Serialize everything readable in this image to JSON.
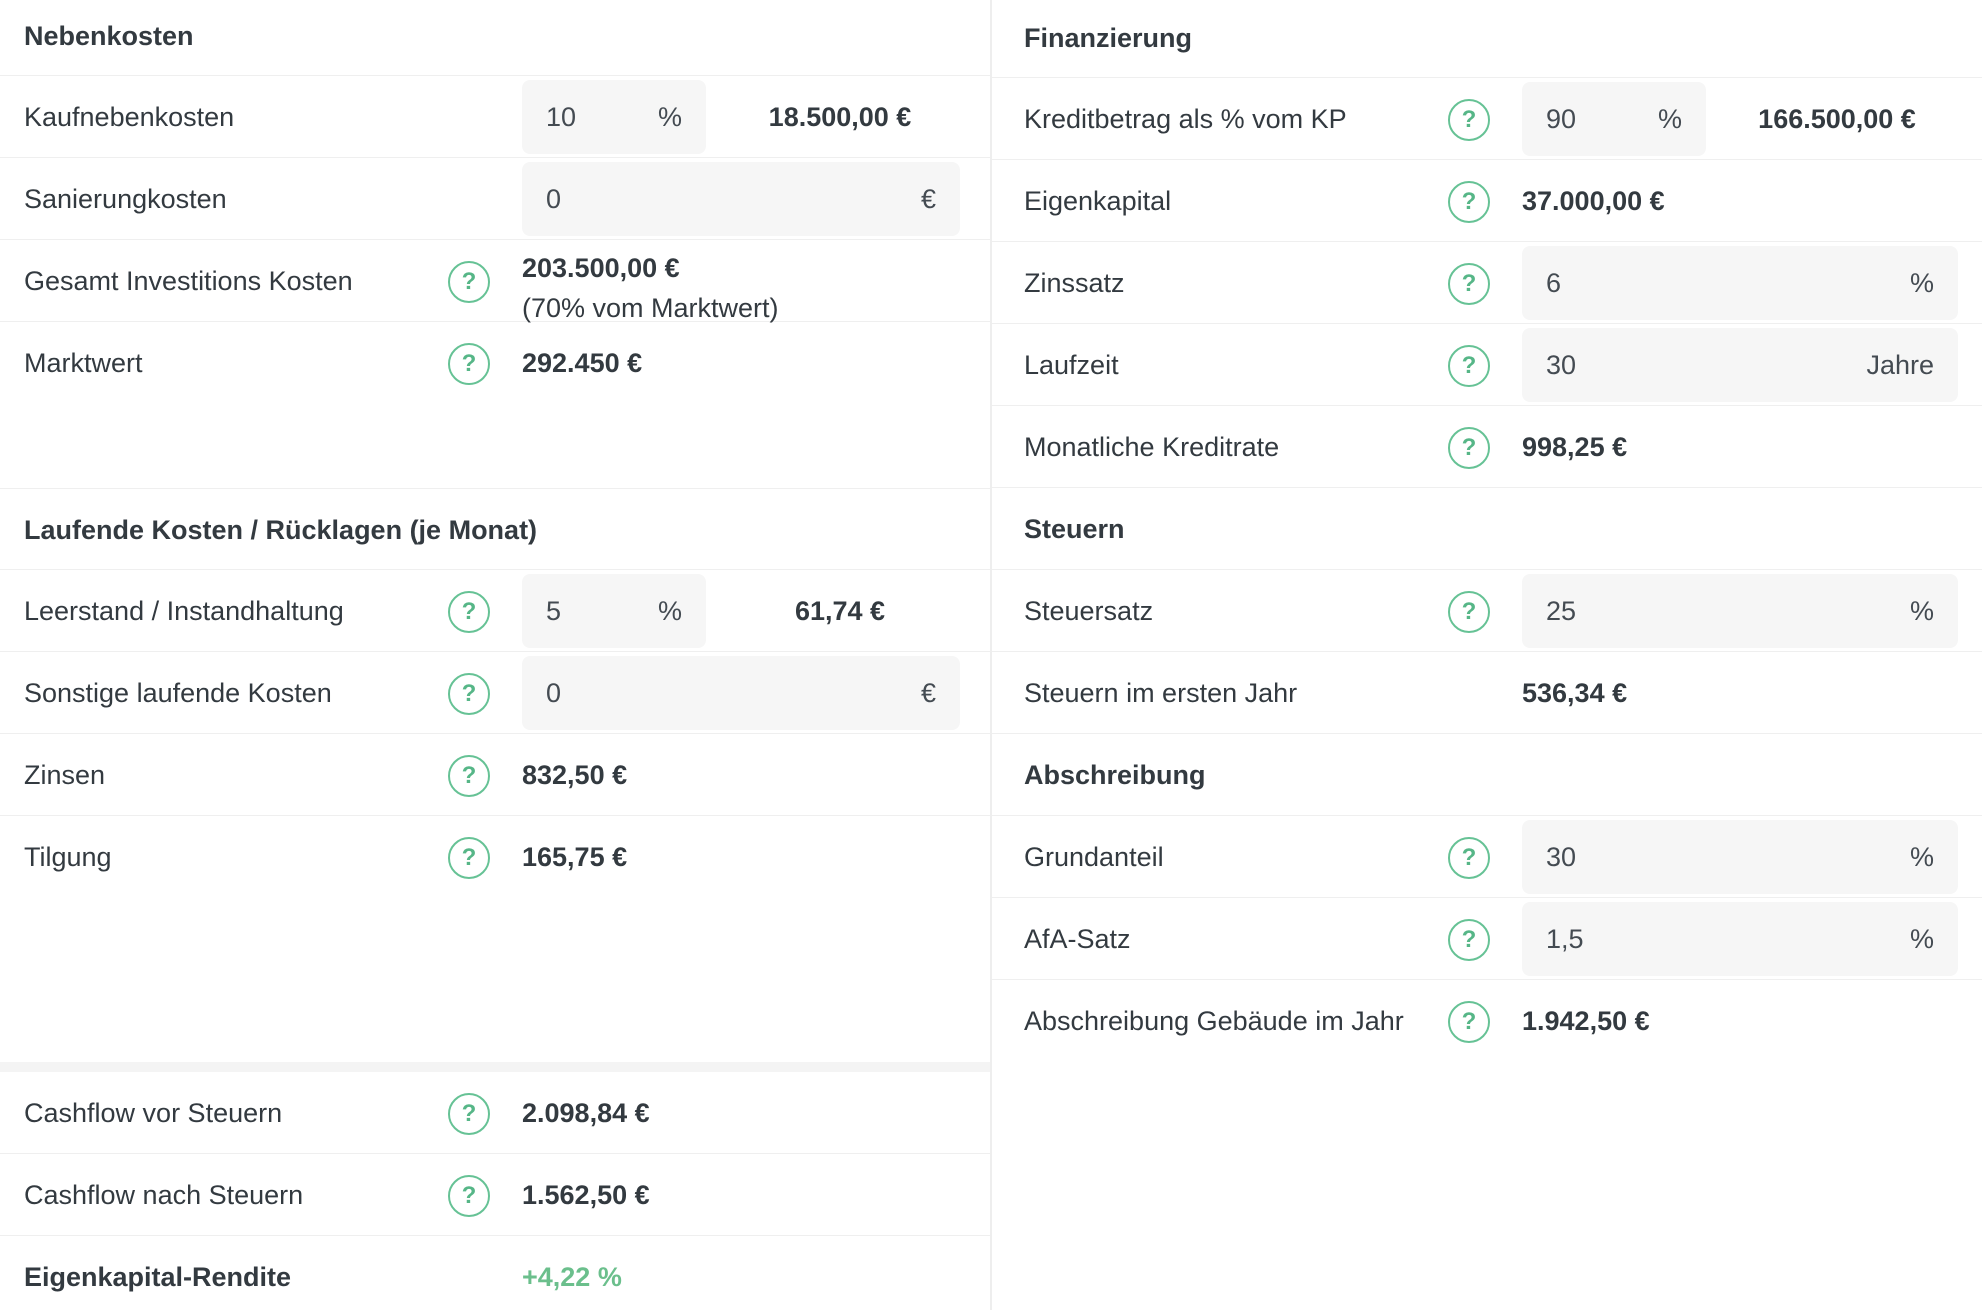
{
  "nebenkosten": {
    "title": "Nebenkosten",
    "kaufnebenkosten": {
      "label": "Kaufnebenkosten",
      "value": "10",
      "unit": "%",
      "amount": "18.500,00 €"
    },
    "sanierungkosten": {
      "label": "Sanierungkosten",
      "value": "0",
      "unit": "€"
    },
    "gesamt": {
      "label": "Gesamt Investitions Kosten",
      "amount": "203.500,00 €",
      "note": "(70% vom Marktwert)"
    },
    "marktwert": {
      "label": "Marktwert",
      "amount": "292.450 €"
    }
  },
  "laufende": {
    "title": "Laufende Kosten / Rücklagen (je Monat)",
    "leerstand": {
      "label": "Leerstand / Instandhaltung",
      "value": "5",
      "unit": "%",
      "amount": "61,74 €"
    },
    "sonstige": {
      "label": "Sonstige laufende Kosten",
      "value": "0",
      "unit": "€"
    },
    "zinsen": {
      "label": "Zinsen",
      "amount": "832,50 €"
    },
    "tilgung": {
      "label": "Tilgung",
      "amount": "165,75 €"
    }
  },
  "summary": {
    "cashflow_vor": {
      "label": "Cashflow vor Steuern",
      "amount": "2.098,84 €"
    },
    "cashflow_nach": {
      "label": "Cashflow nach Steuern",
      "amount": "1.562,50 €"
    },
    "rendite": {
      "label": "Eigenkapital-Rendite",
      "amount": "+4,22 %"
    }
  },
  "finanzierung": {
    "title": "Finanzierung",
    "kreditbetrag": {
      "label": "Kreditbetrag als % vom KP",
      "value": "90",
      "unit": "%",
      "amount": "166.500,00 €"
    },
    "eigenkapital": {
      "label": "Eigenkapital",
      "amount": "37.000,00 €"
    },
    "zinssatz": {
      "label": "Zinssatz",
      "value": "6",
      "unit": "%"
    },
    "laufzeit": {
      "label": "Laufzeit",
      "value": "30",
      "unit": "Jahre"
    },
    "kreditrate": {
      "label": "Monatliche Kreditrate",
      "amount": "998,25 €"
    }
  },
  "steuern": {
    "title": "Steuern",
    "steuersatz": {
      "label": "Steuersatz",
      "value": "25",
      "unit": "%"
    },
    "erstes_jahr": {
      "label": "Steuern im ersten Jahr",
      "amount": "536,34 €"
    }
  },
  "abschreibung": {
    "title": "Abschreibung",
    "grundanteil": {
      "label": "Grundanteil",
      "value": "30",
      "unit": "%"
    },
    "afa": {
      "label": "AfA-Satz",
      "value": "1,5",
      "unit": "%"
    },
    "gebaeude": {
      "label": "Abschreibung Gebäude im Jahr",
      "amount": "1.942,50 €"
    }
  },
  "help_glyph": "?",
  "icons": {
    "help": "question-circle-icon"
  },
  "colors": {
    "accent": "#66c295",
    "positive": "#6bbf8c",
    "input_bg": "#f6f6f6"
  }
}
